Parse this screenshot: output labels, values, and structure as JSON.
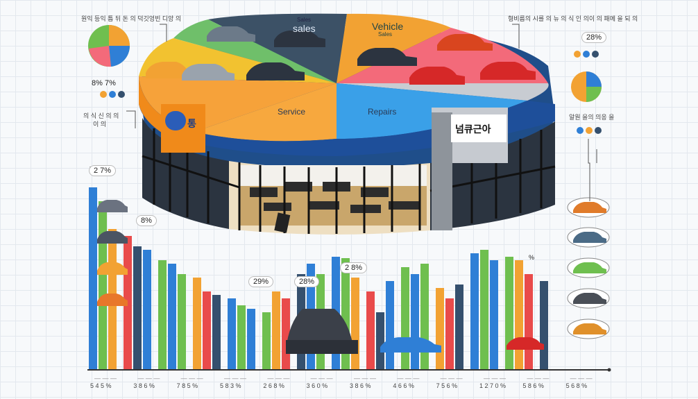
{
  "pie_labels": {
    "sales_small": "Sales",
    "sales": "sales",
    "vehicle": "Vehicle",
    "vehicle_small": "Sales",
    "service": "Service",
    "repairs": "Repairs"
  },
  "store": {
    "sign_left": "통",
    "sign_right": "넘큐근아"
  },
  "annotations": {
    "top_left": "원익 등익 틈 뒤 돈 의 덕깃엉빈 디앙 의",
    "top_right": "형비름의 시를 의 뉴 의 식 인 의이 의 패메 을 되 의",
    "left_mid_pct": "8% 7%",
    "left_side": "의 식 신 의 의",
    "left_side_2": "이 의",
    "right_side": "알원 을의 의응 을",
    "badge_top_right": "28%",
    "badge_bar_left": "2 7%",
    "badge_bar_a": "8%",
    "badge_bar_b": "29%",
    "badge_bar_c": "28%",
    "badge_bar_d": "2 8%",
    "badge_bar_e": "%"
  },
  "axis_ticks": [
    "5 4 5 %",
    "3 8 6 %",
    "7 8 5 %",
    "5 8 3 %",
    "2 6 8 %",
    "3 6 0 %",
    "3 8 6 %",
    "4 6 6 %",
    "7 5 6 %",
    "1 2 7 0 %",
    "5 8 6 %",
    "5 6 8 %"
  ],
  "axis_ticks_top": [
    "",
    "",
    "",
    "",
    "",
    "",
    "",
    "",
    "",
    "",
    "",
    ""
  ],
  "colors": {
    "blue": "#2f7fd6",
    "green": "#6fbf4f",
    "orange": "#f2a233",
    "red": "#e94b4b",
    "navy": "#35506e",
    "pink": "#f36a7a",
    "gray": "#6b7280"
  }
}
